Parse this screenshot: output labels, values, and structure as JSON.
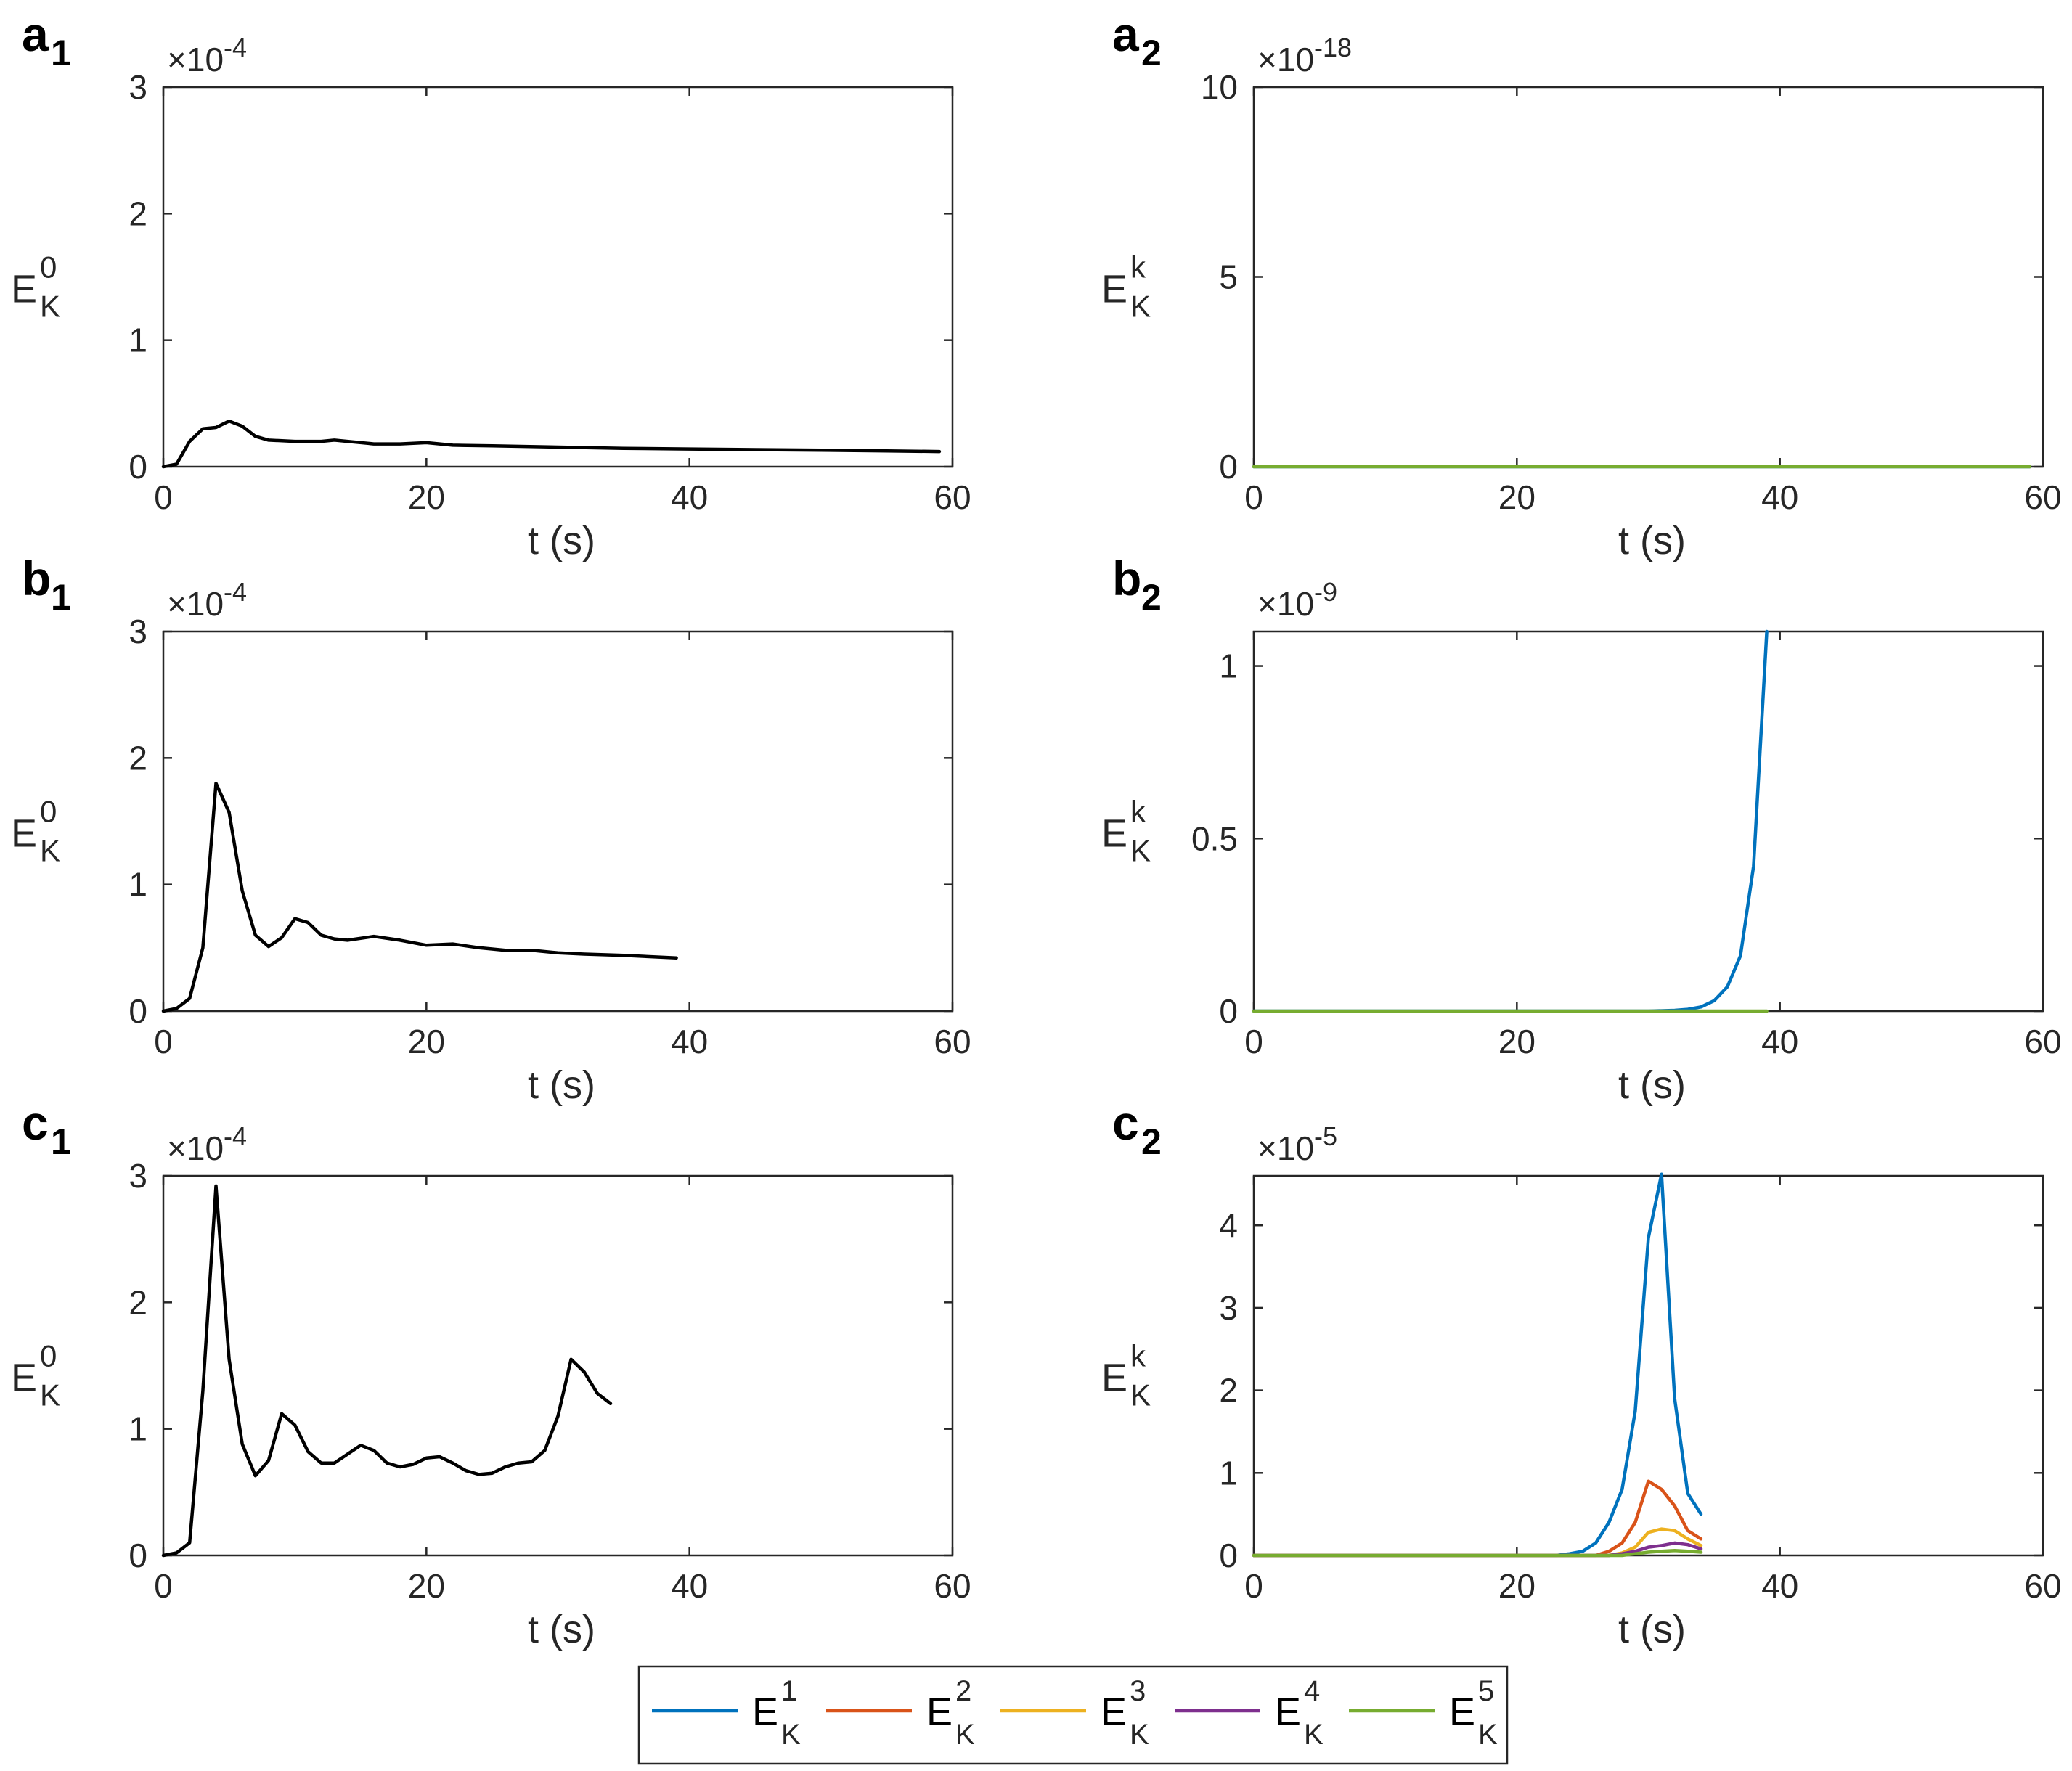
{
  "chart_data": [
    {
      "id": "a1",
      "panel_letter": "a",
      "panel_sub": "1",
      "type": "line",
      "xlim": [
        0,
        60
      ],
      "ylim": [
        0,
        3
      ],
      "xticks": [
        "0",
        "20",
        "40",
        "60"
      ],
      "yticks": [
        "0",
        "1",
        "2",
        "3"
      ],
      "exp_base": "×10",
      "exp_power": "-4",
      "xlabel": "t (s)",
      "ylabel_main": "E",
      "ylabel_sup": "0",
      "ylabel_sub": "K",
      "series": [
        {
          "name": "E_K^0",
          "color": "#000000",
          "x": [
            0,
            1,
            2,
            3,
            4,
            5,
            6,
            7,
            8,
            10,
            12,
            13,
            14,
            16,
            18,
            20,
            22,
            25,
            30,
            35,
            40,
            45,
            50,
            55,
            59
          ],
          "y": [
            0,
            0.02,
            0.2,
            0.3,
            0.31,
            0.36,
            0.32,
            0.24,
            0.21,
            0.2,
            0.2,
            0.21,
            0.2,
            0.18,
            0.18,
            0.19,
            0.17,
            0.165,
            0.155,
            0.145,
            0.14,
            0.135,
            0.13,
            0.125,
            0.12
          ]
        }
      ]
    },
    {
      "id": "a2",
      "panel_letter": "a",
      "panel_sub": "2",
      "type": "line",
      "xlim": [
        0,
        60
      ],
      "ylim": [
        0,
        10
      ],
      "xticks": [
        "0",
        "20",
        "40",
        "60"
      ],
      "yticks": [
        "0",
        "5",
        "10"
      ],
      "exp_base": "×10",
      "exp_power": "-18",
      "xlabel": "t (s)",
      "ylabel_main": "E",
      "ylabel_sup": "k",
      "ylabel_sub": "K",
      "series": [
        {
          "name": "E_K^1",
          "color": "#0072BD",
          "x": [
            0,
            59
          ],
          "y": [
            0,
            0
          ]
        },
        {
          "name": "E_K^5",
          "color": "#77AC30",
          "x": [
            0,
            59
          ],
          "y": [
            0,
            0
          ]
        }
      ]
    },
    {
      "id": "b1",
      "panel_letter": "b",
      "panel_sub": "1",
      "type": "line",
      "xlim": [
        0,
        60
      ],
      "ylim": [
        0,
        3
      ],
      "xticks": [
        "0",
        "20",
        "40",
        "60"
      ],
      "yticks": [
        "0",
        "1",
        "2",
        "3"
      ],
      "exp_base": "×10",
      "exp_power": "-4",
      "xlabel": "t (s)",
      "ylabel_main": "E",
      "ylabel_sup": "0",
      "ylabel_sub": "K",
      "series": [
        {
          "name": "E_K^0",
          "color": "#000000",
          "x": [
            0,
            1,
            2,
            3,
            4,
            5,
            6,
            7,
            8,
            9,
            10,
            11,
            12,
            13,
            14,
            16,
            18,
            20,
            22,
            24,
            26,
            28,
            30,
            32,
            35,
            39
          ],
          "y": [
            0,
            0.02,
            0.1,
            0.5,
            1.8,
            1.57,
            0.95,
            0.6,
            0.51,
            0.58,
            0.73,
            0.7,
            0.6,
            0.57,
            0.56,
            0.59,
            0.56,
            0.52,
            0.53,
            0.5,
            0.48,
            0.48,
            0.46,
            0.45,
            0.44,
            0.42
          ]
        }
      ]
    },
    {
      "id": "b2",
      "panel_letter": "b",
      "panel_sub": "2",
      "type": "line",
      "xlim": [
        0,
        60
      ],
      "ylim": [
        0,
        1.1
      ],
      "xticks": [
        "0",
        "20",
        "40",
        "60"
      ],
      "yticks": [
        "0",
        "0.5",
        "1"
      ],
      "exp_base": "×10",
      "exp_power": "-9",
      "xlabel": "t (s)",
      "ylabel_main": "E",
      "ylabel_sup": "k",
      "ylabel_sub": "K",
      "series": [
        {
          "name": "E_K^1",
          "color": "#0072BD",
          "x": [
            0,
            30,
            32,
            33,
            34,
            35,
            36,
            37,
            38,
            39
          ],
          "y": [
            0,
            0,
            0.002,
            0.005,
            0.012,
            0.03,
            0.07,
            0.16,
            0.42,
            1.1
          ]
        },
        {
          "name": "E_K^5",
          "color": "#77AC30",
          "x": [
            0,
            39
          ],
          "y": [
            0,
            0
          ]
        }
      ]
    },
    {
      "id": "c1",
      "panel_letter": "c",
      "panel_sub": "1",
      "type": "line",
      "xlim": [
        0,
        60
      ],
      "ylim": [
        0,
        3
      ],
      "xticks": [
        "0",
        "20",
        "40",
        "60"
      ],
      "yticks": [
        "0",
        "1",
        "2",
        "3"
      ],
      "exp_base": "×10",
      "exp_power": "-4",
      "xlabel": "t (s)",
      "ylabel_main": "E",
      "ylabel_sup": "0",
      "ylabel_sub": "K",
      "series": [
        {
          "name": "E_K^0",
          "color": "#000000",
          "x": [
            0,
            1,
            2,
            3,
            4,
            5,
            6,
            7,
            8,
            9,
            10,
            11,
            12,
            13,
            14,
            15,
            16,
            17,
            18,
            19,
            20,
            21,
            22,
            23,
            24,
            25,
            26,
            27,
            28,
            29,
            30,
            31,
            32,
            33,
            34
          ],
          "y": [
            0,
            0.02,
            0.1,
            1.3,
            2.92,
            1.55,
            0.88,
            0.63,
            0.75,
            1.12,
            1.03,
            0.82,
            0.73,
            0.73,
            0.8,
            0.87,
            0.83,
            0.73,
            0.7,
            0.72,
            0.77,
            0.78,
            0.73,
            0.67,
            0.64,
            0.65,
            0.7,
            0.73,
            0.74,
            0.83,
            1.1,
            1.55,
            1.45,
            1.28,
            1.2
          ]
        }
      ]
    },
    {
      "id": "c2",
      "panel_letter": "c",
      "panel_sub": "2",
      "type": "line",
      "xlim": [
        0,
        60
      ],
      "ylim": [
        0,
        4.6
      ],
      "xticks": [
        "0",
        "20",
        "40",
        "60"
      ],
      "yticks": [
        "0",
        "1",
        "2",
        "3",
        "4"
      ],
      "exp_base": "×10",
      "exp_power": "-5",
      "xlabel": "t (s)",
      "ylabel_main": "E",
      "ylabel_sup": "k",
      "ylabel_sub": "K",
      "series": [
        {
          "name": "E_K^1",
          "color": "#0072BD",
          "x": [
            0,
            23,
            24,
            25,
            26,
            27,
            28,
            29,
            30,
            31,
            32,
            33,
            34
          ],
          "y": [
            0,
            0,
            0.02,
            0.05,
            0.15,
            0.4,
            0.8,
            1.75,
            3.85,
            4.62,
            1.9,
            0.75,
            0.5
          ]
        },
        {
          "name": "E_K^2",
          "color": "#D95319",
          "x": [
            0,
            26,
            27,
            28,
            29,
            30,
            31,
            32,
            33,
            34
          ],
          "y": [
            0,
            0,
            0.05,
            0.15,
            0.4,
            0.9,
            0.8,
            0.6,
            0.3,
            0.2
          ]
        },
        {
          "name": "E_K^3",
          "color": "#EDB120",
          "x": [
            0,
            27,
            28,
            29,
            30,
            31,
            32,
            33,
            34
          ],
          "y": [
            0,
            0,
            0.03,
            0.1,
            0.28,
            0.32,
            0.3,
            0.2,
            0.12
          ]
        },
        {
          "name": "E_K^4",
          "color": "#7E2F8E",
          "x": [
            0,
            27,
            28,
            29,
            30,
            31,
            32,
            33,
            34
          ],
          "y": [
            0,
            0,
            0.02,
            0.05,
            0.1,
            0.12,
            0.15,
            0.13,
            0.08
          ]
        },
        {
          "name": "E_K^5",
          "color": "#77AC30",
          "x": [
            0,
            28,
            29,
            30,
            31,
            32,
            33,
            34
          ],
          "y": [
            0,
            0,
            0.02,
            0.04,
            0.05,
            0.06,
            0.05,
            0.04
          ]
        }
      ]
    }
  ],
  "legend": {
    "items": [
      {
        "main": "E",
        "sup": "1",
        "sub": "K",
        "color": "#0072BD"
      },
      {
        "main": "E",
        "sup": "2",
        "sub": "K",
        "color": "#D95319"
      },
      {
        "main": "E",
        "sup": "3",
        "sub": "K",
        "color": "#EDB120"
      },
      {
        "main": "E",
        "sup": "4",
        "sub": "K",
        "color": "#7E2F8E"
      },
      {
        "main": "E",
        "sup": "5",
        "sub": "K",
        "color": "#77AC30"
      }
    ]
  }
}
